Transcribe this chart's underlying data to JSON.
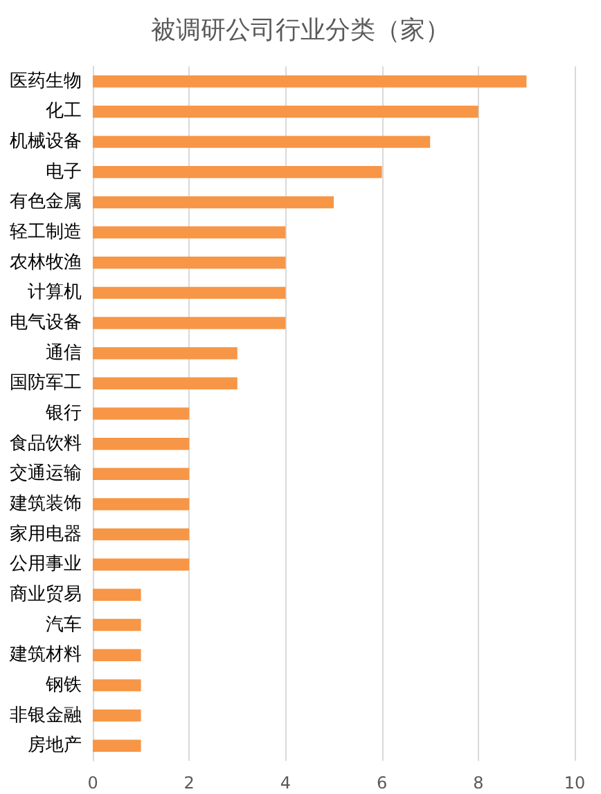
{
  "chart_data": {
    "type": "bar",
    "orientation": "horizontal",
    "title": "被调研公司行业分类（家）",
    "categories": [
      "医药生物",
      "化工",
      "机械设备",
      "电子",
      "有色金属",
      "轻工制造",
      "农林牧渔",
      "计算机",
      "电气设备",
      "通信",
      "国防军工",
      "银行",
      "食品饮料",
      "交通运输",
      "建筑装饰",
      "家用电器",
      "公用事业",
      "商业贸易",
      "汽车",
      "建筑材料",
      "钢铁",
      "非银金融",
      "房地产"
    ],
    "values": [
      9,
      8,
      7,
      6,
      5,
      4,
      4,
      4,
      4,
      3,
      3,
      2,
      2,
      2,
      2,
      2,
      2,
      1,
      1,
      1,
      1,
      1,
      1
    ],
    "color": "#f79646",
    "xlim": [
      0,
      10
    ],
    "xticks": [
      0,
      2,
      4,
      6,
      8,
      10
    ],
    "grid": "x"
  }
}
